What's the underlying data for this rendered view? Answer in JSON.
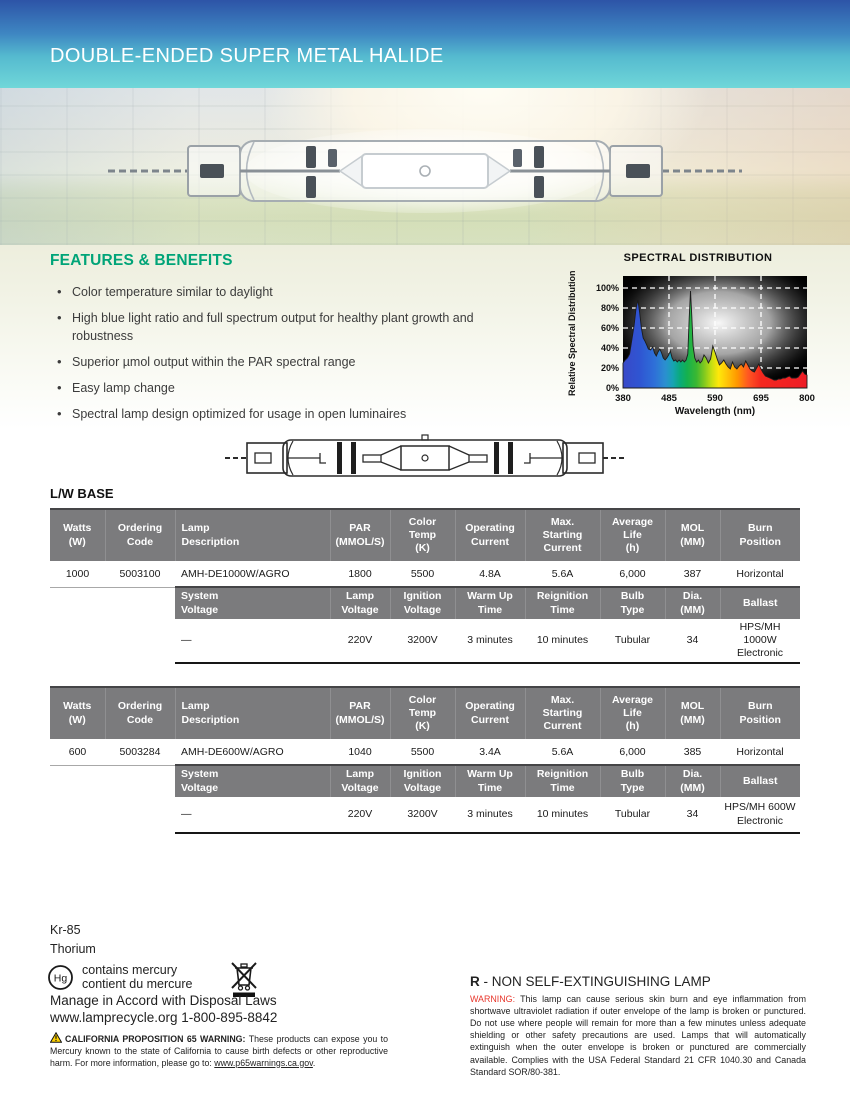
{
  "colors": {
    "accent_green": "#00a478",
    "header_gradient_top": "#2d54a7",
    "header_gradient_bottom": "#70d7d9",
    "table_header_gray": "#7b7b7d",
    "warning_red": "#e8372c"
  },
  "header": {
    "title": "DOUBLE-ENDED SUPER METAL HALIDE"
  },
  "features": {
    "heading": "FEATURES & BENEFITS",
    "items": [
      "Color temperature similar to daylight",
      "High blue light ratio and full spectrum output for healthy plant growth and robustness",
      "Superior µmol output within the PAR spectral range",
      "Easy lamp change",
      "Spectral lamp design optimized for usage in open luminaires"
    ]
  },
  "spectral": {
    "title": "SPECTRAL DISTRIBUTION",
    "ylabel": "Relative Spectral Distribution",
    "xlabel": "Wavelength (nm)",
    "yticks": [
      "100%",
      "80%",
      "60%",
      "40%",
      "20%",
      "0%"
    ],
    "xticks": [
      "380",
      "485",
      "590",
      "695",
      "800"
    ]
  },
  "chart_data": {
    "type": "area",
    "title": "SPECTRAL DISTRIBUTION",
    "xlabel": "Wavelength (nm)",
    "ylabel": "Relative Spectral Distribution",
    "xlim": [
      380,
      800
    ],
    "ylim": [
      0,
      100
    ],
    "grid": "dashed-white on black background with radial glow",
    "x": [
      380,
      385,
      390,
      395,
      400,
      405,
      410,
      414,
      418,
      422,
      426,
      430,
      434,
      438,
      443,
      448,
      452,
      456,
      460,
      464,
      468,
      472,
      476,
      480,
      484,
      488,
      492,
      496,
      500,
      504,
      508,
      512,
      516,
      520,
      524,
      528,
      531,
      534,
      537,
      540,
      544,
      548,
      552,
      556,
      560,
      565,
      570,
      575,
      580,
      585,
      590,
      595,
      600,
      605,
      610,
      615,
      620,
      625,
      630,
      635,
      640,
      645,
      650,
      655,
      660,
      665,
      670,
      675,
      680,
      685,
      690,
      695,
      700,
      705,
      710,
      715,
      720,
      725,
      730,
      735,
      740,
      745,
      750,
      755,
      760,
      765,
      770,
      775,
      780,
      785,
      790,
      795,
      800
    ],
    "y": [
      25,
      28,
      30,
      34,
      48,
      62,
      80,
      88,
      76,
      60,
      50,
      47,
      43,
      39,
      38,
      41,
      35,
      32,
      36,
      39,
      35,
      30,
      28,
      30,
      33,
      37,
      30,
      27,
      28,
      26,
      28,
      26,
      28,
      26,
      28,
      34,
      70,
      97,
      72,
      42,
      30,
      26,
      28,
      25,
      27,
      33,
      30,
      25,
      29,
      42,
      36,
      29,
      23,
      25,
      28,
      24,
      21,
      19,
      26,
      21,
      19,
      22,
      24,
      21,
      27,
      23,
      19,
      17,
      16,
      20,
      24,
      19,
      15,
      12,
      11,
      10,
      9,
      8,
      8,
      9,
      9,
      10,
      10,
      11,
      12,
      10,
      10,
      10,
      11,
      14,
      17,
      14,
      13
    ]
  },
  "section": {
    "title": "L/W BASE"
  },
  "tables": [
    {
      "main_header": [
        "Watts\n(W)",
        "Ordering\nCode",
        "Lamp\nDescription",
        "PAR\n(MMOL/S)",
        "Color\nTemp\n(K)",
        "Operating\nCurrent",
        "Max.\nStarting\nCurrent",
        "Average\nLife\n(h)",
        "MOL\n(MM)",
        "Burn\nPosition"
      ],
      "main_row": [
        "1000",
        "5003100",
        "AMH-DE1000W/AGRO",
        "1800",
        "5500",
        "4.8A",
        "5.6A",
        "6,000",
        "387",
        "Horizontal"
      ],
      "sub_header": [
        "System\nVoltage",
        "Lamp\nVoltage",
        "Ignition\nVoltage",
        "Warm Up\nTime",
        "Reignition\nTime",
        "Bulb\nType",
        "Dia.\n(MM)",
        "Ballast"
      ],
      "sub_row": [
        "—",
        "220V",
        "3200V",
        "3 minutes",
        "10 minutes",
        "Tubular",
        "34",
        "HPS/MH 1000W\nElectronic"
      ]
    },
    {
      "main_header": [
        "Watts\n(W)",
        "Ordering\nCode",
        "Lamp\nDescription",
        "PAR\n(MMOL/S)",
        "Color\nTemp\n(K)",
        "Operating\nCurrent",
        "Max.\nStarting\nCurrent",
        "Average\nLife\n(h)",
        "MOL\n(MM)",
        "Burn\nPosition"
      ],
      "main_row": [
        "600",
        "5003284",
        "AMH-DE600W/AGRO",
        "1040",
        "5500",
        "3.4A",
        "5.6A",
        "6,000",
        "385",
        "Horizontal"
      ],
      "sub_header": [
        "System\nVoltage",
        "Lamp\nVoltage",
        "Ignition\nVoltage",
        "Warm Up\nTime",
        "Reignition\nTime",
        "Bulb\nType",
        "Dia.\n(MM)",
        "Ballast"
      ],
      "sub_row": [
        "—",
        "220V",
        "3200V",
        "3 minutes",
        "10 minutes",
        "Tubular",
        "34",
        "HPS/MH 600W\nElectronic"
      ]
    }
  ],
  "footer": {
    "isotope": "Kr-85",
    "element": "Thorium",
    "hg_symbol": "Hg",
    "mercury_line1": "contains mercury",
    "mercury_line2": "contient du mercure",
    "disposal": "Manage in Accord with Disposal Laws",
    "recycle_line": "www.lamprecycle.org  1-800-895-8842",
    "ca_title": "CALIFORNIA PROPOSITION 65 WARNING:",
    "ca_body": " These products can expose you to Mercury known to the state of California to cause birth defects or other reproductive harm. For more information, please go to: ",
    "ca_link": "www.p65warnings.ca.gov",
    "ca_end": ".",
    "r_prefix": "R",
    "r_rest": " - NON SELF-EXTINGUISHING LAMP",
    "warning_label": "WARNING:",
    "warning_body": " This lamp can cause serious skin burn and eye inflammation from shortwave ultraviolet radiation if outer envelope of the lamp is broken or punctured.  Do not use where people will remain for more than a few minutes unless adequate shielding or other safety precautions are used.  Lamps that will automatically extinguish when the outer envelope is broken or punctured are commercially available.  Complies with the USA Federal Standard 21 CFR 1040.30 and Canada Standard SOR/80-381."
  }
}
